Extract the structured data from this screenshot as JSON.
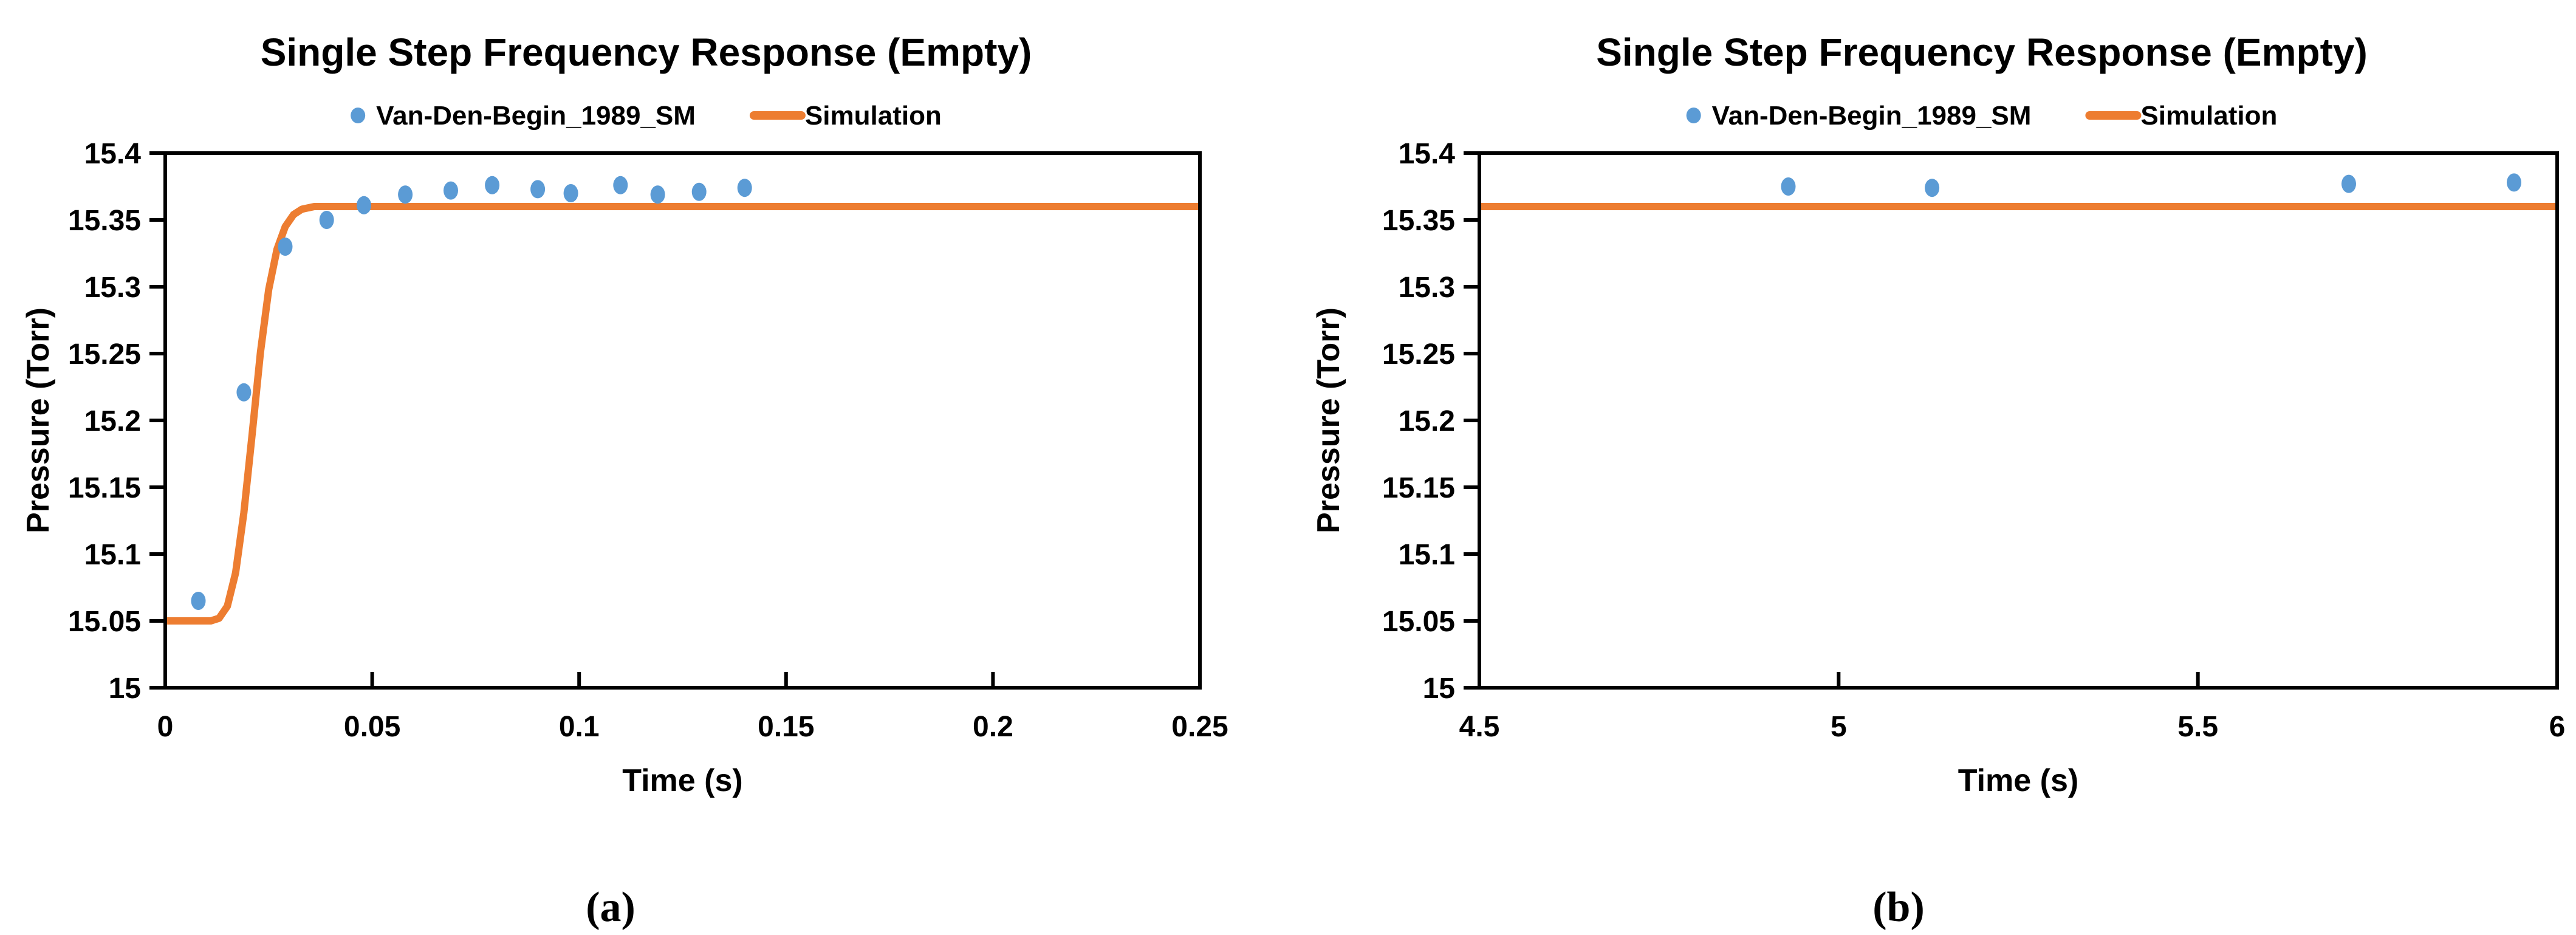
{
  "figure_caption_labels": {
    "left": "(a)",
    "right": "(b)"
  },
  "chart_data": [
    {
      "type": "scatter",
      "panel_label": "(a)",
      "title": "Single Step Frequency Response (Empty)",
      "legend": [
        {
          "name": "Van-Den-Begin_1989_SM",
          "marker": "circle",
          "color": "#5B9BD5"
        },
        {
          "name": "Simulation",
          "marker": "line",
          "color": "#ED7D31"
        }
      ],
      "x_axis": {
        "label": "Time (s)",
        "min": 0,
        "max": 0.25,
        "ticks": [
          0,
          0.05,
          0.1,
          0.15,
          0.2,
          0.25
        ],
        "tick_labels": [
          "0",
          "0.05",
          "0.1",
          "0.15",
          "0.2",
          "0.25"
        ]
      },
      "y_axis": {
        "label": "Pressure (Torr)",
        "min": 15,
        "max": 15.4,
        "ticks": [
          15,
          15.05,
          15.1,
          15.15,
          15.2,
          15.25,
          15.3,
          15.35,
          15.4
        ],
        "tick_labels": [
          "15",
          "15.05",
          "15.1",
          "15.15",
          "15.2",
          "15.25",
          "15.3",
          "15.35",
          "15.4"
        ]
      },
      "series": [
        {
          "name": "Simulation",
          "type": "line",
          "color": "#ED7D31",
          "points": [
            [
              0,
              15.05
            ],
            [
              0.011,
              15.05
            ],
            [
              0.013,
              15.052
            ],
            [
              0.015,
              15.061
            ],
            [
              0.017,
              15.086
            ],
            [
              0.019,
              15.131
            ],
            [
              0.021,
              15.19
            ],
            [
              0.023,
              15.251
            ],
            [
              0.025,
              15.298
            ],
            [
              0.027,
              15.328
            ],
            [
              0.029,
              15.345
            ],
            [
              0.031,
              15.354
            ],
            [
              0.033,
              15.358
            ],
            [
              0.036,
              15.36
            ],
            [
              0.25,
              15.36
            ]
          ]
        },
        {
          "name": "Van-Den-Begin_1989_SM",
          "type": "scatter",
          "color": "#5B9BD5",
          "points": [
            [
              0.008,
              15.065
            ],
            [
              0.019,
              15.221
            ],
            [
              0.029,
              15.33
            ],
            [
              0.039,
              15.35
            ],
            [
              0.048,
              15.361
            ],
            [
              0.058,
              15.369
            ],
            [
              0.069,
              15.372
            ],
            [
              0.079,
              15.376
            ],
            [
              0.09,
              15.373
            ],
            [
              0.098,
              15.37
            ],
            [
              0.11,
              15.376
            ],
            [
              0.119,
              15.369
            ],
            [
              0.129,
              15.371
            ],
            [
              0.14,
              15.374
            ]
          ]
        }
      ]
    },
    {
      "type": "scatter",
      "panel_label": "(b)",
      "title": "Single Step Frequency Response (Empty)",
      "legend": [
        {
          "name": "Van-Den-Begin_1989_SM",
          "marker": "circle",
          "color": "#5B9BD5"
        },
        {
          "name": "Simulation",
          "marker": "line",
          "color": "#ED7D31"
        }
      ],
      "x_axis": {
        "label": "Time (s)",
        "min": 4.5,
        "max": 6,
        "ticks": [
          4.5,
          5,
          5.5,
          6
        ],
        "tick_labels": [
          "4.5",
          "5",
          "5.5",
          "6"
        ]
      },
      "y_axis": {
        "label": "Pressure (Torr)",
        "min": 15,
        "max": 15.4,
        "ticks": [
          15,
          15.05,
          15.1,
          15.15,
          15.2,
          15.25,
          15.3,
          15.35,
          15.4
        ],
        "tick_labels": [
          "15",
          "15.05",
          "15.1",
          "15.15",
          "15.2",
          "15.25",
          "15.3",
          "15.35",
          "15.4"
        ]
      },
      "series": [
        {
          "name": "Simulation",
          "type": "line",
          "color": "#ED7D31",
          "points": [
            [
              4.5,
              15.36
            ],
            [
              6,
              15.36
            ]
          ]
        },
        {
          "name": "Van-Den-Begin_1989_SM",
          "type": "scatter",
          "color": "#5B9BD5",
          "points": [
            [
              4.93,
              15.375
            ],
            [
              5.13,
              15.374
            ],
            [
              5.71,
              15.377
            ],
            [
              5.94,
              15.378
            ]
          ]
        }
      ]
    }
  ],
  "style_colors": {
    "scatter_blue": "#5B9BD5",
    "line_orange": "#ED7D31",
    "axis_black": "#000000"
  }
}
